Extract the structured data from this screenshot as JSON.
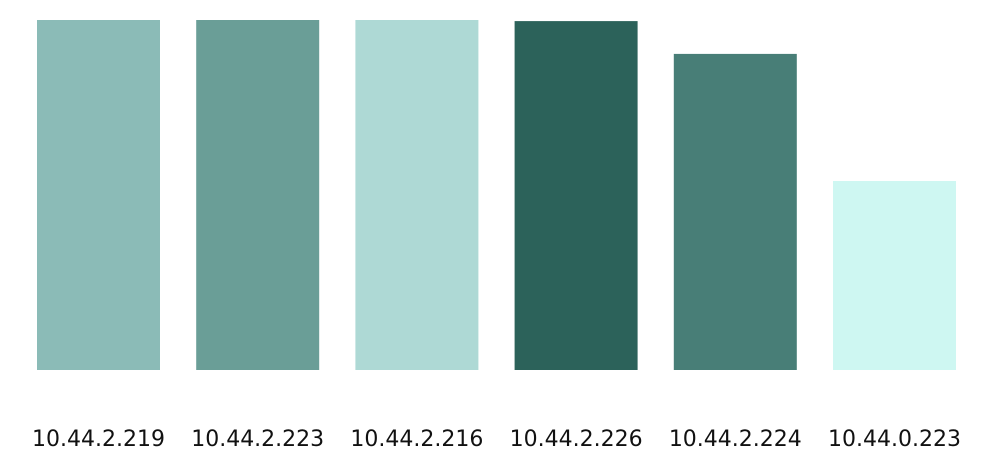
{
  "chart_data": {
    "type": "bar",
    "categories": [
      "10.44.2.219",
      "10.44.2.223",
      "10.44.2.216",
      "10.44.2.226",
      "10.44.2.224",
      "10.44.0.223"
    ],
    "values": [
      100,
      100,
      100,
      99.7,
      90.3,
      54
    ],
    "colors": [
      "#8bbbb7",
      "#6a9e97",
      "#aed9d5",
      "#2c625a",
      "#487e77",
      "#cef7f2"
    ],
    "title": "",
    "xlabel": "",
    "ylabel": "",
    "ylim": [
      0,
      100
    ],
    "grid": false,
    "legend": "none"
  }
}
